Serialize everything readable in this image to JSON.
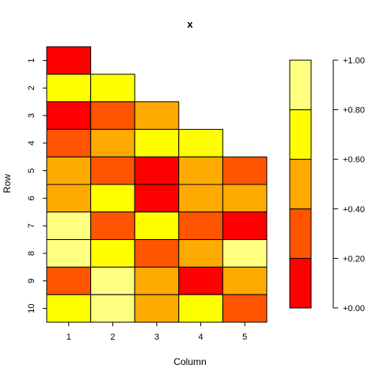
{
  "chart_data": {
    "type": "heatmap",
    "title": "x",
    "xlabel": "Column",
    "ylabel": "Row",
    "columns": [
      "1",
      "2",
      "3",
      "4",
      "5"
    ],
    "rows": [
      "1",
      "2",
      "3",
      "4",
      "5",
      "6",
      "7",
      "8",
      "9",
      "10"
    ],
    "cell_levels": [
      [
        0,
        null,
        null,
        null,
        null
      ],
      [
        3,
        3,
        null,
        null,
        null
      ],
      [
        0,
        1,
        2,
        null,
        null
      ],
      [
        1,
        2,
        3,
        3,
        null
      ],
      [
        2,
        1,
        0,
        2,
        1
      ],
      [
        2,
        3,
        0,
        2,
        2
      ],
      [
        4,
        1,
        3,
        1,
        0
      ],
      [
        4,
        3,
        1,
        2,
        4
      ],
      [
        1,
        4,
        2,
        0,
        2
      ],
      [
        3,
        4,
        2,
        3,
        1
      ]
    ],
    "legend": {
      "range": [
        0,
        1
      ],
      "breaks": [
        0,
        0.2,
        0.4,
        0.6,
        0.8,
        1.0
      ],
      "colors": [
        "#FF0000",
        "#FF5500",
        "#FFAA00",
        "#FFFF00",
        "#FFFF80"
      ],
      "tick_labels": [
        "+0.00",
        "+0.20",
        "+0.40",
        "+0.60",
        "+0.80",
        "+1.00"
      ]
    },
    "grid": false,
    "legend_placement": "right"
  }
}
